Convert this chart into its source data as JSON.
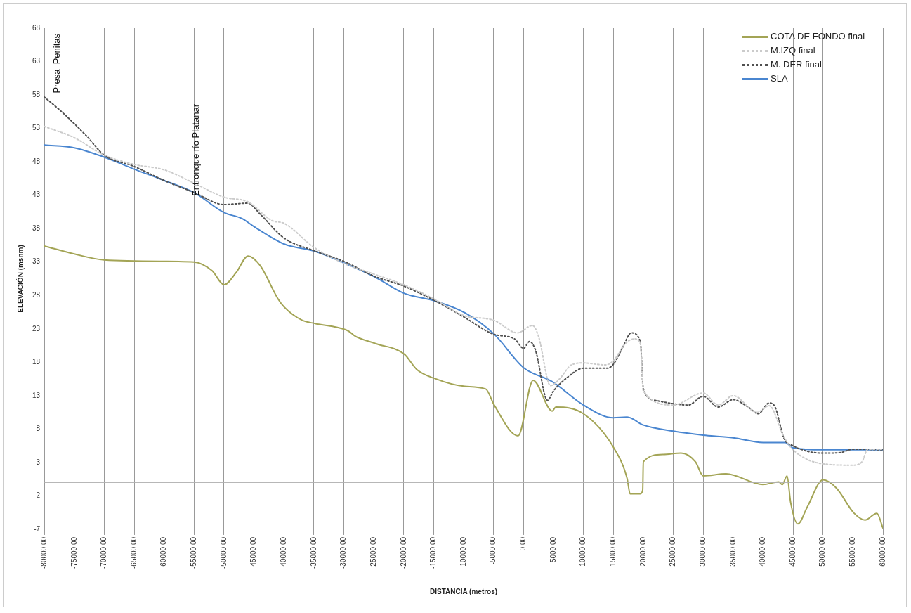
{
  "chart_data": {
    "type": "line",
    "xlabel": "DISTANCIA (metros)",
    "ylabel": "ELEVACIÓN (msnm)",
    "xlim": [
      -80000,
      60000
    ],
    "xticks": [
      {
        "value": -80000,
        "label": "-80000.00"
      },
      {
        "value": -75000,
        "label": "-75000.00"
      },
      {
        "value": -70000,
        "label": "-70000.00"
      },
      {
        "value": -65000,
        "label": "-65000.00"
      },
      {
        "value": -60000,
        "label": "-60000.00"
      },
      {
        "value": -55000,
        "label": "-55000.00"
      },
      {
        "value": -50000,
        "label": "-50000.00"
      },
      {
        "value": -45000,
        "label": "-45000.00"
      },
      {
        "value": -40000,
        "label": "-40000.00"
      },
      {
        "value": -35000,
        "label": "-35000.00"
      },
      {
        "value": -30000,
        "label": "-30000.00"
      },
      {
        "value": -25000,
        "label": "-25000.00"
      },
      {
        "value": -20000,
        "label": "-20000.00"
      },
      {
        "value": -15000,
        "label": "-15000.00"
      },
      {
        "value": -10000,
        "label": "-10000.00"
      },
      {
        "value": -5000,
        "label": "-5000.00"
      },
      {
        "value": 0,
        "label": "0.00"
      },
      {
        "value": 5000,
        "label": "5000.00"
      },
      {
        "value": 10000,
        "label": "10000.00"
      },
      {
        "value": 15000,
        "label": "15000.00"
      },
      {
        "value": 20000,
        "label": "20000.00"
      },
      {
        "value": 25000,
        "label": "25000.00"
      },
      {
        "value": 30000,
        "label": "30000.00"
      },
      {
        "value": 35000,
        "label": "35000.00"
      },
      {
        "value": 40000,
        "label": "40000.00"
      },
      {
        "value": 45000,
        "label": "45000.00"
      },
      {
        "value": 50000,
        "label": "50000.00"
      },
      {
        "value": 55000,
        "label": "55000.00"
      },
      {
        "value": 60000,
        "label": "60000.00"
      }
    ],
    "ylim": [
      -7,
      68
    ],
    "yticks": [
      -7,
      -2,
      3,
      8,
      13,
      18,
      23,
      28,
      33,
      38,
      43,
      48,
      53,
      58,
      63,
      68
    ],
    "grid": "x",
    "legend": "top right",
    "ref_lines": [
      {
        "axis": "y",
        "value": 0,
        "color": "#b0b0b0"
      }
    ],
    "annotations": [
      "Presa  Penitas",
      "Entronque río Platanar"
    ],
    "series": [
      {
        "name": "COTA DE FONDO final",
        "color": "#a3a455",
        "line_style": "solid",
        "x": [
          -80000,
          -75000,
          -70000,
          -60000,
          -55000,
          -52000,
          -50000,
          -48000,
          -46000,
          -44000,
          -41000,
          -40000,
          -37000,
          -34800,
          -29800,
          -29100,
          -28100,
          -24700,
          -19900,
          -17800,
          -14900,
          -9800,
          -6300,
          -4900,
          -900,
          1600,
          4800,
          5400,
          10000,
          15000,
          17300,
          17800,
          19500,
          19900,
          20000,
          23300,
          26300,
          28700,
          30000,
          33800,
          40000,
          42600,
          43200,
          44000,
          44600,
          45800,
          47400,
          50000,
          52200,
          55200,
          57000,
          59000,
          60000
        ],
        "values": [
          35.4,
          34.2,
          33.3,
          33.1,
          33.0,
          31.7,
          29.6,
          31.4,
          33.9,
          32.5,
          27.5,
          26.3,
          24.3,
          23.8,
          22.9,
          22.6,
          21.9,
          20.8,
          19.2,
          16.9,
          15.6,
          14.4,
          14.0,
          11.6,
          7.0,
          15.3,
          10.7,
          11.3,
          10.3,
          5.3,
          0.6,
          -1.7,
          -1.7,
          -1.1,
          3.1,
          4.2,
          4.4,
          3.1,
          1.0,
          1.3,
          -0.3,
          0.1,
          -0.3,
          1.0,
          -3.0,
          -6.2,
          -3.6,
          0.4,
          -0.8,
          -4.6,
          -5.6,
          -4.6,
          -6.8
        ]
      },
      {
        "name": "M.IZQ final",
        "color": "#cbcbcb",
        "line_style": "dotted",
        "x": [
          -80000,
          -75000,
          -70000,
          -65000,
          -60000,
          -55000,
          -50000,
          -46000,
          -42000,
          -40000,
          -35000,
          -30000,
          -25000,
          -20000,
          -15000,
          -10000,
          -5000,
          -1000,
          1500,
          2500,
          4500,
          6000,
          8000,
          10000,
          13600,
          15000,
          17000,
          18500,
          19500,
          20000,
          25000,
          30000,
          32500,
          35000,
          39000,
          41000,
          43500,
          45000,
          50000,
          55000,
          56500,
          57500,
          60000
        ],
        "values": [
          53.3,
          51.6,
          49.0,
          47.6,
          46.8,
          44.8,
          42.7,
          42.0,
          39.2,
          38.8,
          35.2,
          32.8,
          31.2,
          29.6,
          27.5,
          25.0,
          24.3,
          22.4,
          23.5,
          21.9,
          14.5,
          15.5,
          17.6,
          17.9,
          17.6,
          18.2,
          20.8,
          21.5,
          20.8,
          13.7,
          11.6,
          13.4,
          11.6,
          13.0,
          10.5,
          11.5,
          6.8,
          4.9,
          2.8,
          2.6,
          3.1,
          5.0,
          5.0
        ]
      },
      {
        "name": "M. DER final",
        "color": "#505050",
        "line_style": "dotted",
        "x": [
          -80000,
          -77000,
          -73000,
          -70000,
          -65000,
          -60000,
          -55000,
          -50000,
          -46000,
          -44000,
          -40000,
          -35000,
          -30000,
          -25000,
          -20000,
          -15000,
          -10000,
          -5000,
          -1500,
          0,
          1000,
          2000,
          4000,
          5000,
          7000,
          10000,
          14000,
          15000,
          16500,
          18000,
          19500,
          20000,
          22000,
          25000,
          27500,
          30000,
          32500,
          35000,
          37500,
          39200,
          41000,
          42000,
          43500,
          45000,
          50000,
          53000,
          55000,
          60000
        ],
        "values": [
          57.7,
          55.4,
          51.9,
          49.0,
          47.3,
          45.2,
          43.4,
          41.6,
          41.8,
          40.2,
          36.6,
          34.7,
          33.1,
          30.9,
          29.4,
          27.3,
          24.8,
          22.2,
          21.5,
          20.1,
          21.1,
          19.8,
          12.3,
          13.7,
          15.5,
          17.1,
          17.1,
          17.7,
          20.1,
          22.4,
          21.1,
          14.0,
          12.3,
          11.8,
          11.6,
          12.9,
          11.3,
          12.4,
          11.3,
          10.3,
          11.9,
          11.3,
          6.6,
          5.5,
          4.4,
          4.5,
          5.0,
          4.9
        ]
      },
      {
        "name": "SLA",
        "color": "#4a86d0",
        "line_style": "solid",
        "x": [
          -80000,
          -75000,
          -70000,
          -65000,
          -60000,
          -55000,
          -50000,
          -47000,
          -45000,
          -40000,
          -34800,
          -29800,
          -24700,
          -19900,
          -14900,
          -9800,
          -4900,
          0,
          4800,
          10000,
          15000,
          17300,
          20000,
          25000,
          30000,
          35000,
          40000,
          43700,
          45000,
          50000,
          55000,
          60000
        ],
        "values": [
          50.5,
          50.1,
          48.7,
          46.9,
          45.2,
          43.4,
          40.4,
          39.5,
          38.3,
          35.7,
          34.6,
          32.8,
          30.7,
          28.3,
          27.2,
          25.4,
          22.2,
          17.2,
          15.1,
          11.6,
          9.7,
          9.8,
          8.6,
          7.7,
          7.1,
          6.7,
          6.0,
          6.0,
          5.2,
          4.9,
          4.9,
          4.9
        ]
      }
    ]
  }
}
